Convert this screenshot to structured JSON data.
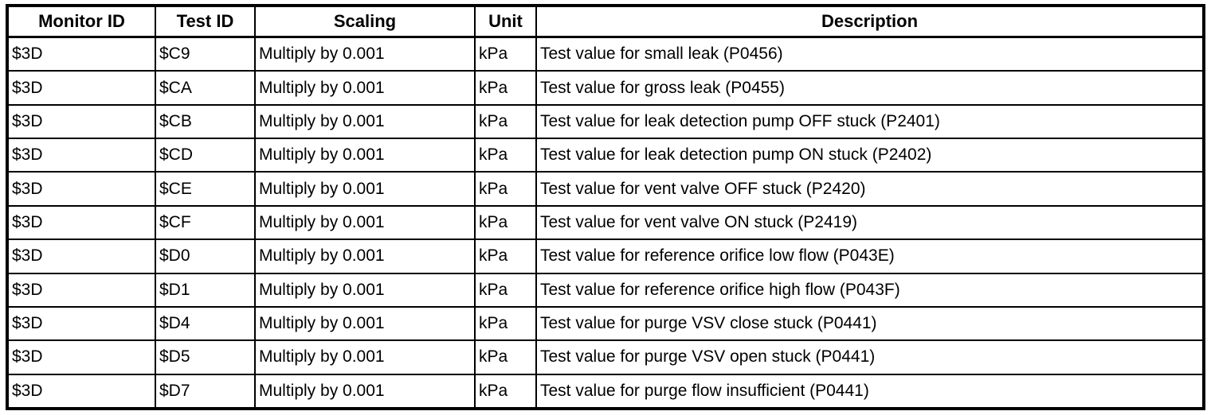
{
  "colors": {
    "border": "#000000",
    "background": "#ffffff",
    "text": "#000000"
  },
  "table": {
    "columns": [
      {
        "key": "monitor_id",
        "label": "Monitor ID"
      },
      {
        "key": "test_id",
        "label": "Test ID"
      },
      {
        "key": "scaling",
        "label": "Scaling"
      },
      {
        "key": "unit",
        "label": "Unit"
      },
      {
        "key": "description",
        "label": "Description"
      }
    ],
    "rows": [
      [
        "$3D",
        "$C9",
        "Multiply by 0.001",
        "kPa",
        "Test value for small leak (P0456)"
      ],
      [
        "$3D",
        "$CA",
        "Multiply by 0.001",
        "kPa",
        "Test value for gross leak (P0455)"
      ],
      [
        "$3D",
        "$CB",
        "Multiply by 0.001",
        "kPa",
        "Test value for leak detection pump OFF stuck (P2401)"
      ],
      [
        "$3D",
        "$CD",
        "Multiply by 0.001",
        "kPa",
        "Test value for leak detection pump ON stuck (P2402)"
      ],
      [
        "$3D",
        "$CE",
        "Multiply by 0.001",
        "kPa",
        "Test value for vent valve OFF stuck (P2420)"
      ],
      [
        "$3D",
        "$CF",
        "Multiply by 0.001",
        "kPa",
        "Test value for vent valve ON stuck (P2419)"
      ],
      [
        "$3D",
        "$D0",
        "Multiply by 0.001",
        "kPa",
        "Test value for reference orifice low flow (P043E)"
      ],
      [
        "$3D",
        "$D1",
        "Multiply by 0.001",
        "kPa",
        "Test value for reference orifice high flow (P043F)"
      ],
      [
        "$3D",
        "$D4",
        "Multiply by 0.001",
        "kPa",
        "Test value for purge VSV close stuck (P0441)"
      ],
      [
        "$3D",
        "$D5",
        "Multiply by 0.001",
        "kPa",
        "Test value for purge VSV open stuck (P0441)"
      ],
      [
        "$3D",
        "$D7",
        "Multiply by 0.001",
        "kPa",
        "Test value for purge flow insufficient (P0441)"
      ]
    ]
  }
}
